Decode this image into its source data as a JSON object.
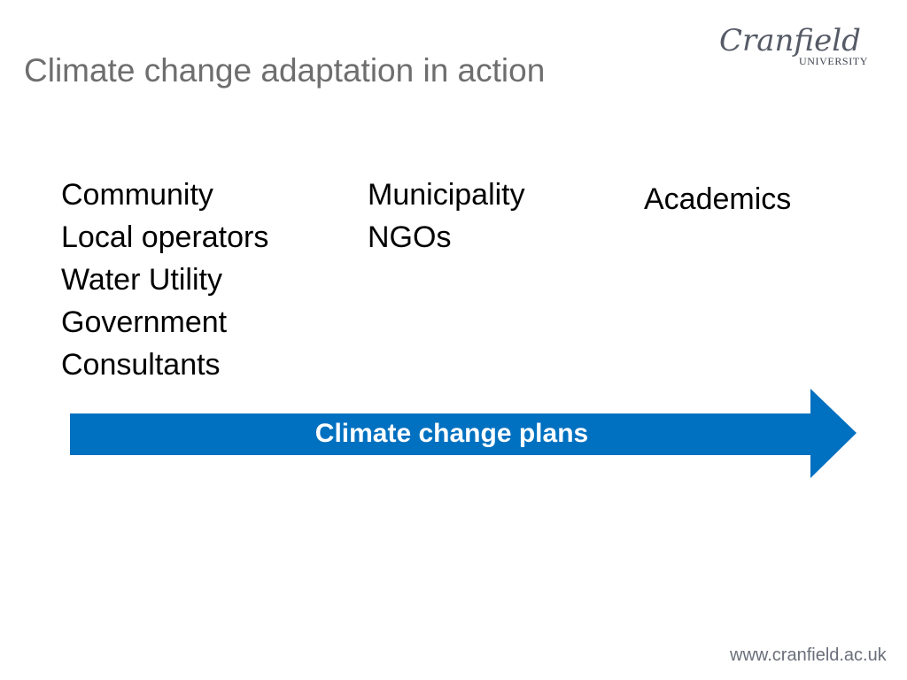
{
  "slide": {
    "title": "Climate change adaptation in action",
    "logo": {
      "name": "Cranfield",
      "subtitle": "UNIVERSITY"
    },
    "columns": [
      {
        "items": [
          "Community",
          "Local operators",
          "Water Utility",
          "Government",
          "Consultants"
        ]
      },
      {
        "items": [
          "Municipality",
          "NGOs"
        ]
      },
      {
        "items": [
          "Academics"
        ]
      }
    ],
    "arrow": {
      "label": "Climate change plans",
      "color": "#0070c0"
    },
    "footer_url": "www.cranfield.ac.uk"
  },
  "colors": {
    "title": "#6e6e6e",
    "arrow_fill": "#0070c0",
    "arrow_text": "#ffffff",
    "logo": "#555a66"
  }
}
